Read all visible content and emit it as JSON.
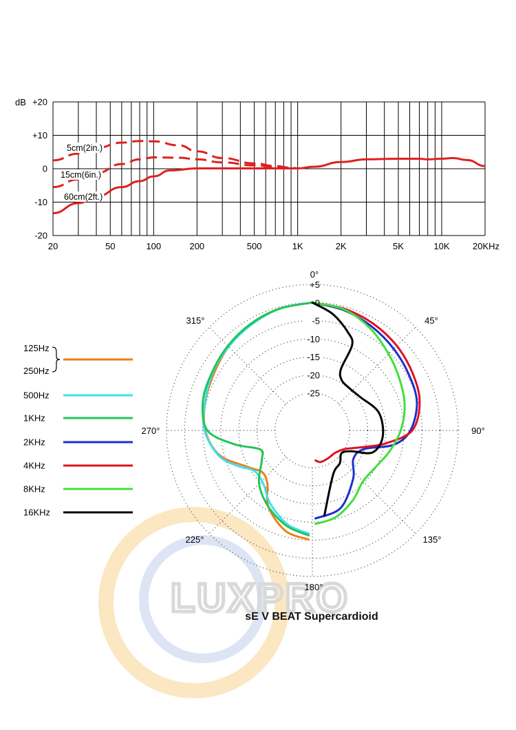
{
  "watermark": {
    "text": "LUXPRO"
  },
  "chart_data": [
    {
      "type": "line",
      "title": "",
      "xlabel": "",
      "ylabel": "dB",
      "x_scale": "log",
      "xlim": [
        20,
        20000
      ],
      "ylim": [
        -20,
        20
      ],
      "x_ticks": [
        {
          "v": 20,
          "label": "20"
        },
        {
          "v": 50,
          "label": "50"
        },
        {
          "v": 100,
          "label": "100"
        },
        {
          "v": 200,
          "label": "200"
        },
        {
          "v": 500,
          "label": "500"
        },
        {
          "v": 1000,
          "label": "1K"
        },
        {
          "v": 2000,
          "label": "2K"
        },
        {
          "v": 5000,
          "label": "5K"
        },
        {
          "v": 10000,
          "label": "10K"
        },
        {
          "v": 20000,
          "label": "20KHz"
        }
      ],
      "y_ticks": [
        {
          "v": 20,
          "label": "+20"
        },
        {
          "v": 10,
          "label": "+10"
        },
        {
          "v": 0,
          "label": "0"
        },
        {
          "v": -10,
          "label": "-10"
        },
        {
          "v": -20,
          "label": "-20"
        }
      ],
      "grid": true,
      "color": "#e02020",
      "series": [
        {
          "name": "5cm(2in.)",
          "style": "dashed",
          "x": [
            20,
            30,
            40,
            60,
            80,
            100,
            150,
            200,
            300,
            500,
            700,
            900,
            1000
          ],
          "y": [
            2.5,
            4.5,
            6.2,
            7.8,
            8.3,
            8.2,
            7.0,
            5.2,
            3.2,
            1.6,
            0.8,
            0.3,
            0.1
          ]
        },
        {
          "name": "15cm(6in.)",
          "style": "dashed",
          "x": [
            20,
            30,
            40,
            60,
            80,
            100,
            150,
            200,
            300,
            500,
            700,
            900,
            1000
          ],
          "y": [
            -5.5,
            -3.2,
            -1.3,
            1.4,
            2.8,
            3.4,
            3.3,
            2.8,
            1.9,
            1.0,
            0.5,
            0.2,
            0.1
          ]
        },
        {
          "name": "60cm(2ft.)",
          "style": "solid",
          "x": [
            20,
            30,
            40,
            60,
            80,
            100,
            130,
            200,
            300,
            500,
            800,
            1000,
            1300,
            2000,
            3000,
            5000,
            7000,
            8000,
            10000,
            12000,
            15000,
            20000
          ],
          "y": [
            -13.3,
            -10.3,
            -8.3,
            -5.5,
            -3.7,
            -2.3,
            -0.5,
            0.1,
            0.1,
            0.1,
            0.1,
            0.1,
            0.6,
            2.0,
            2.8,
            3.0,
            3.0,
            2.8,
            3.0,
            3.2,
            2.6,
            0.8
          ]
        }
      ]
    },
    {
      "type": "polar",
      "title": "sE V BEAT Supercardioid",
      "angle_labels": [
        {
          "deg": 0,
          "label": "0°"
        },
        {
          "deg": 45,
          "label": "45°"
        },
        {
          "deg": 90,
          "label": "90°"
        },
        {
          "deg": 135,
          "label": "135°"
        },
        {
          "deg": 180,
          "label": "180°"
        },
        {
          "deg": 225,
          "label": "225°"
        },
        {
          "deg": 270,
          "label": "270°"
        },
        {
          "deg": 315,
          "label": "315°"
        }
      ],
      "r_ticks": [
        {
          "v": 5,
          "label": "+5"
        },
        {
          "v": 0,
          "label": "0"
        },
        {
          "v": -5,
          "label": "-5"
        },
        {
          "v": -10,
          "label": "-10"
        },
        {
          "v": -15,
          "label": "-15"
        },
        {
          "v": -20,
          "label": "-20"
        },
        {
          "v": -25,
          "label": "-25"
        }
      ],
      "r_range": [
        -30,
        5
      ],
      "legend": [
        {
          "label": "125Hz",
          "color": "#ef7d1a"
        },
        {
          "label": "250Hz",
          "color": "#ef7d1a"
        },
        {
          "label": "500Hz",
          "color": "#3ee0ec"
        },
        {
          "label": "1KHz",
          "color": "#22c45a"
        },
        {
          "label": "2KHz",
          "color": "#1a2fd0"
        },
        {
          "label": "4KHz",
          "color": "#e01020"
        },
        {
          "label": "8KHz",
          "color": "#3fe03a"
        },
        {
          "label": "16KHz",
          "color": "#000000"
        }
      ],
      "series": [
        {
          "name": "125Hz / 250Hz",
          "side": "left",
          "color": "#ef7d1a",
          "points": [
            [
              0,
              0
            ],
            [
              15,
              -0.5
            ],
            [
              30,
              -1.3
            ],
            [
              45,
              -2.6
            ],
            [
              60,
              -3.9
            ],
            [
              75,
              -4.7
            ],
            [
              90,
              -5.7
            ],
            [
              105,
              -8.8
            ],
            [
              120,
              -15.0
            ],
            [
              130,
              -17.3
            ],
            [
              140,
              -16.0
            ],
            [
              150,
              -11.0
            ],
            [
              165,
              -6.6
            ],
            [
              178,
              -5.2
            ]
          ]
        },
        {
          "name": "500Hz",
          "side": "left",
          "color": "#3ee0ec",
          "points": [
            [
              0,
              0
            ],
            [
              15,
              -0.5
            ],
            [
              30,
              -1.6
            ],
            [
              45,
              -2.6
            ],
            [
              60,
              -3.5
            ],
            [
              75,
              -4.6
            ],
            [
              90,
              -5.5
            ],
            [
              105,
              -8.5
            ],
            [
              115,
              -12.3
            ],
            [
              125,
              -15.8
            ],
            [
              138,
              -15.2
            ],
            [
              150,
              -12.0
            ],
            [
              165,
              -8.5
            ],
            [
              178,
              -6.8
            ]
          ]
        },
        {
          "name": "1KHz",
          "side": "left",
          "color": "#22c45a",
          "points": [
            [
              0,
              0
            ],
            [
              15,
              -0.5
            ],
            [
              30,
              -1.3
            ],
            [
              45,
              -2.3
            ],
            [
              60,
              -3.3
            ],
            [
              75,
              -4.0
            ],
            [
              90,
              -6.3
            ],
            [
              100,
              -13.4
            ],
            [
              110,
              -20.0
            ],
            [
              120,
              -19.2
            ],
            [
              135,
              -14.5
            ],
            [
              150,
              -11.0
            ],
            [
              165,
              -8.0
            ],
            [
              178,
              -6.3
            ]
          ]
        },
        {
          "name": "2KHz",
          "side": "right",
          "color": "#1a2fd0",
          "points": [
            [
              0,
              0
            ],
            [
              15,
              -1.0
            ],
            [
              30,
              -2.3
            ],
            [
              45,
              -3.5
            ],
            [
              60,
              -4.5
            ],
            [
              75,
              -5.4
            ],
            [
              90,
              -8.2
            ],
            [
              100,
              -12.5
            ],
            [
              110,
              -20.2
            ],
            [
              125,
              -21.5
            ],
            [
              140,
              -17.8
            ],
            [
              160,
              -12.5
            ],
            [
              178,
              -11.0
            ]
          ]
        },
        {
          "name": "4KHz",
          "side": "right",
          "color": "#e01020",
          "points": [
            [
              0,
              0
            ],
            [
              15,
              -0.6
            ],
            [
              30,
              -1.4
            ],
            [
              45,
              -2.3
            ],
            [
              60,
              -3.4
            ],
            [
              75,
              -4.6
            ],
            [
              90,
              -7.7
            ],
            [
              100,
              -14.7
            ],
            [
              108,
              -20.5
            ],
            [
              120,
              -25.0
            ],
            [
              135,
              -26.5
            ],
            [
              150,
              -26.5
            ],
            [
              165,
              -26.3
            ],
            [
              174,
              -27.0
            ]
          ]
        },
        {
          "name": "8KHz",
          "side": "right",
          "color": "#3fe03a",
          "points": [
            [
              0,
              0
            ],
            [
              15,
              -0.8
            ],
            [
              30,
              -3.0
            ],
            [
              45,
              -5.5
            ],
            [
              60,
              -7.4
            ],
            [
              75,
              -8.9
            ],
            [
              90,
              -10.9
            ],
            [
              105,
              -13.2
            ],
            [
              120,
              -15.1
            ],
            [
              135,
              -15.5
            ],
            [
              150,
              -13.0
            ],
            [
              165,
              -10.5
            ],
            [
              178,
              -9.5
            ]
          ]
        },
        {
          "name": "16KHz",
          "side": "right",
          "color": "#000000",
          "points": [
            [
              0,
              0
            ],
            [
              10,
              -2.7
            ],
            [
              20,
              -6.5
            ],
            [
              25,
              -9.3
            ],
            [
              25,
              -16.6
            ],
            [
              30,
              -19.2
            ],
            [
              40,
              -19.8
            ],
            [
              55,
              -19.2
            ],
            [
              75,
              -16.3
            ],
            [
              95,
              -15.8
            ],
            [
              110,
              -17.6
            ],
            [
              118,
              -23.1
            ],
            [
              128,
              -25.1
            ],
            [
              140,
              -23.5
            ],
            [
              155,
              -21.8
            ],
            [
              172,
              -11.5
            ]
          ]
        }
      ]
    }
  ]
}
